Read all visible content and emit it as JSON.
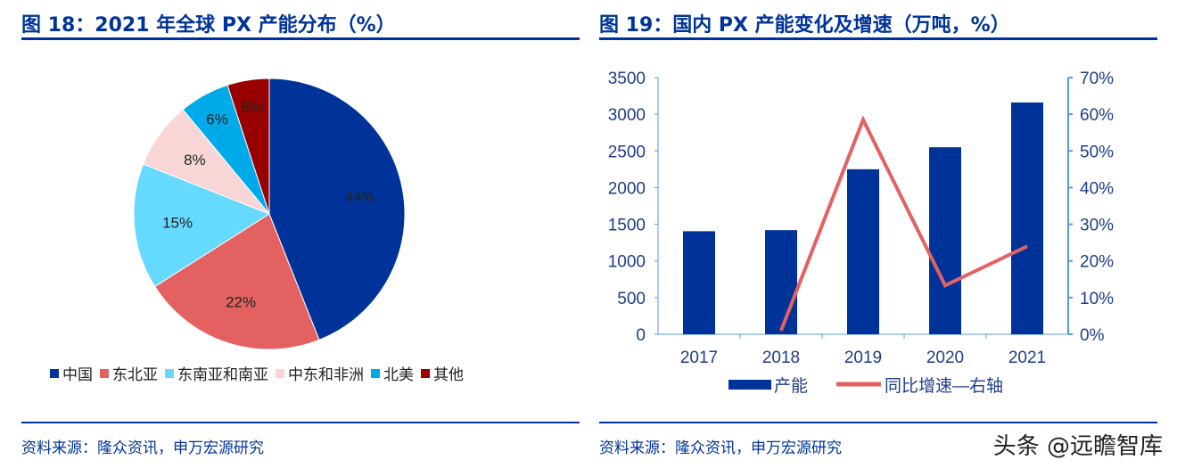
{
  "left": {
    "title": "图 18：2021 年全球 PX 产能分布（%）",
    "source": "资料来源：隆众资讯，申万宏源研究"
  },
  "right": {
    "title": "图 19：国内 PX 产能变化及增速（万吨，%）",
    "source": "资料来源：隆众资讯，申万宏源研究"
  },
  "watermark": "头条 @远瞻智库",
  "chart_data": [
    {
      "type": "pie",
      "title": "2021 年全球 PX 产能分布（%）",
      "labels": [
        "中国",
        "东北亚",
        "东南亚和南亚",
        "中东和非洲",
        "北美",
        "其他"
      ],
      "values": [
        44,
        22,
        15,
        8,
        6,
        5
      ],
      "data_labels": [
        "44%",
        "22%",
        "15%",
        "8%",
        "6%",
        "5%"
      ],
      "colors": [
        "#003399",
        "#E46161",
        "#66D9FF",
        "#F9D6D6",
        "#00AAE8",
        "#990000"
      ],
      "legend": "bottom"
    },
    {
      "type": "bar",
      "title": "国内 PX 产能变化及增速（万吨，%）",
      "categories": [
        "2017",
        "2018",
        "2019",
        "2020",
        "2021"
      ],
      "series": [
        {
          "name": "产能",
          "type": "bar",
          "axis": "left",
          "values": [
            1405,
            1420,
            2250,
            2550,
            3160
          ],
          "color": "#003399"
        },
        {
          "name": "同比增速—右轴",
          "type": "line",
          "axis": "right",
          "values": [
            null,
            1.0,
            58.5,
            13.3,
            24.0
          ],
          "color": "#E46161"
        }
      ],
      "ylim": [
        0,
        3500
      ],
      "yticks": [
        "0",
        "500",
        "1000",
        "1500",
        "2000",
        "2500",
        "3000",
        "3500"
      ],
      "y2lim": [
        0,
        70
      ],
      "y2ticks": [
        "0%",
        "10%",
        "20%",
        "30%",
        "40%",
        "50%",
        "60%",
        "70%"
      ],
      "legend": "bottom"
    }
  ]
}
